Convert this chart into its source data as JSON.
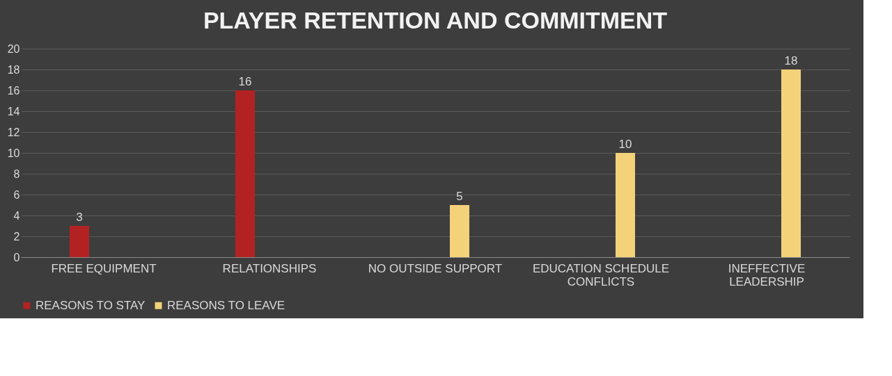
{
  "chart_data": {
    "type": "bar",
    "title": "PLAYER RETENTION AND COMMITMENT",
    "categories": [
      "FREE EQUIPMENT",
      "RELATIONSHIPS",
      "NO OUTSIDE SUPPORT",
      "EDUCATION SCHEDULE CONFLICTS",
      "INEFFECTIVE LEADERSHIP"
    ],
    "series": [
      {
        "name": "REASONS TO STAY",
        "color": "#b22222",
        "values": [
          3,
          16,
          null,
          null,
          null
        ]
      },
      {
        "name": "REASONS TO LEAVE",
        "color": "#f3d27a",
        "values": [
          null,
          null,
          5,
          10,
          18
        ]
      }
    ],
    "ylim": [
      0,
      20
    ],
    "yticks": [
      0,
      2,
      4,
      6,
      8,
      10,
      12,
      14,
      16,
      18,
      20
    ],
    "grid": "y",
    "legend": "bottom",
    "data_labels": true
  }
}
